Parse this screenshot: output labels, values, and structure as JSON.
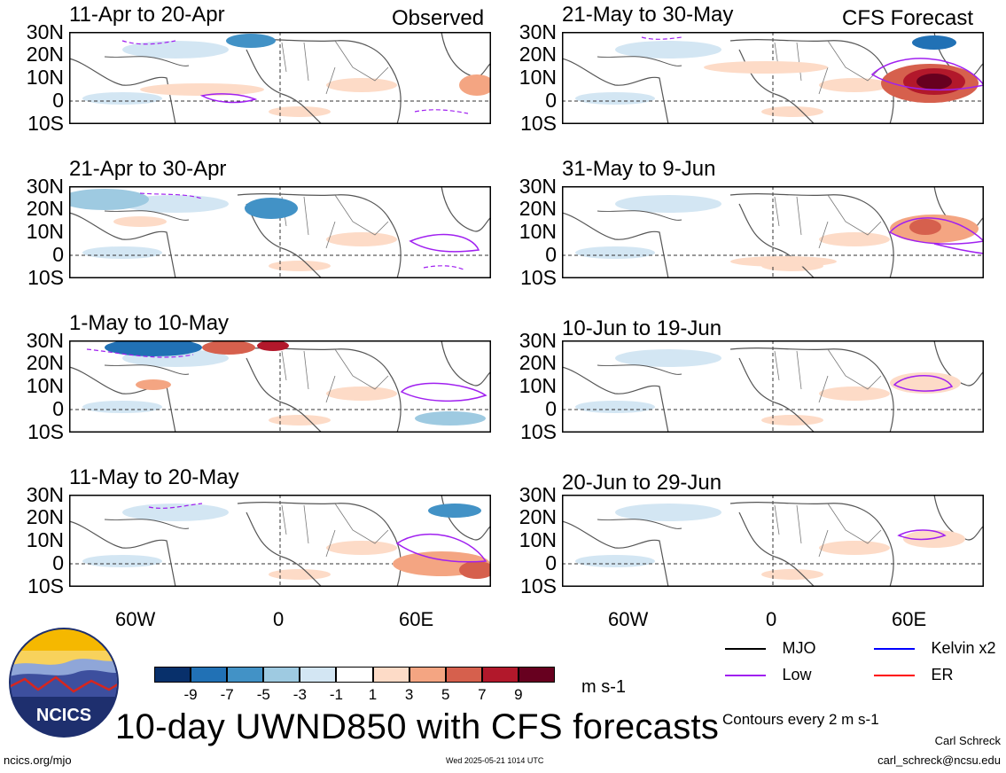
{
  "main_title": "10-day UWND850 with CFS forecasts",
  "column_labels": {
    "observed": "Observed",
    "forecast": "CFS Forecast"
  },
  "observed_panels": [
    {
      "title": "11-Apr to 20-Apr"
    },
    {
      "title": "21-Apr to 30-Apr"
    },
    {
      "title": "1-May to 10-May"
    },
    {
      "title": "11-May to 20-May"
    }
  ],
  "forecast_panels": [
    {
      "title": "21-May to 30-May"
    },
    {
      "title": "31-May to 9-Jun"
    },
    {
      "title": "10-Jun to 19-Jun"
    },
    {
      "title": "20-Jun to 29-Jun"
    }
  ],
  "lat_labels": [
    "30N",
    "20N",
    "10N",
    "0",
    "10S"
  ],
  "lon_labels": [
    "60W",
    "0",
    "60E"
  ],
  "colorbar": {
    "unit": "m s-1",
    "tick_labels": [
      "-9",
      "-7",
      "-5",
      "-3",
      "-1",
      "1",
      "3",
      "5",
      "7",
      "9"
    ],
    "colors": [
      "#08306b",
      "#2171b5",
      "#4292c6",
      "#9ecae1",
      "#d3e6f3",
      "#ffffff",
      "#fddbc7",
      "#f4a582",
      "#d6604d",
      "#b2182b",
      "#67001f"
    ]
  },
  "legend": [
    {
      "label": "MJO",
      "color": "#000000",
      "style": "solid"
    },
    {
      "label": "Kelvin x2",
      "color": "#0000ff",
      "style": "solid"
    },
    {
      "label": "Low",
      "color": "#a020f0",
      "style": "solid"
    },
    {
      "label": "ER",
      "color": "#ff0000",
      "style": "solid"
    }
  ],
  "contour_note": "Contours every 2 m s-1",
  "logo_text": "NCICS",
  "footer": {
    "url": "ncics.org/mjo",
    "timestamp": "Wed 2025-05-21 1014 UTC",
    "author": "Carl Schreck",
    "email": "carl_schreck@ncsu.edu"
  }
}
